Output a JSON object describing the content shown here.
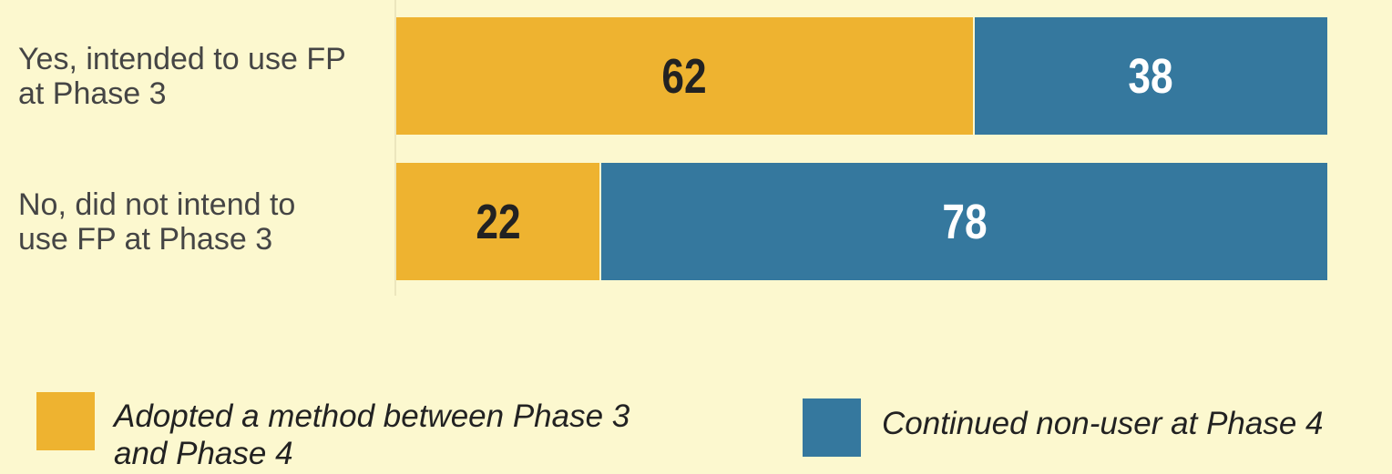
{
  "chart_data": {
    "type": "stacked-barh",
    "categories": [
      "Yes, intended to use FP\nat Phase 3",
      "No, did not intend to\nuse FP at Phase 3"
    ],
    "series": [
      {
        "name": "Adopted a method between Phase 3\nand Phase 4",
        "color": "#eeb330",
        "label_color": "#222222",
        "values": [
          62,
          22
        ]
      },
      {
        "name": "Continued non-user at Phase 4",
        "color": "#35789e",
        "label_color": "#ffffff",
        "values": [
          38,
          78
        ]
      }
    ],
    "xlim": [
      0,
      100
    ]
  }
}
